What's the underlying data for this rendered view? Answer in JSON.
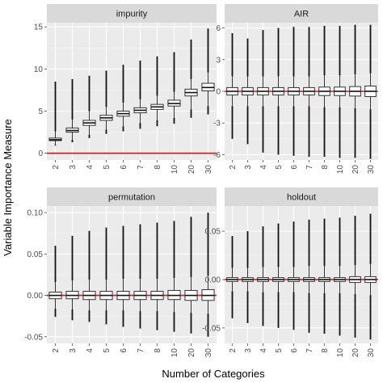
{
  "chart_data": {
    "type": "boxplot",
    "xlabel": "Number of Categories",
    "ylabel": "Variable Importance Measure",
    "categories": [
      "2",
      "3",
      "4",
      "5",
      "6",
      "7",
      "8",
      "10",
      "20",
      "30"
    ],
    "reference_line": {
      "y": 0,
      "color": "#d7191c"
    },
    "panels": [
      {
        "title": "impurity",
        "ylim": [
          -0.8,
          15.5
        ],
        "yticks": [
          0,
          5,
          10,
          15
        ],
        "ytick_labels": [
          "0",
          "5",
          "10",
          "15"
        ],
        "boxes": [
          {
            "q1": 1.5,
            "median": 1.6,
            "q3": 1.8,
            "lo": 1.0,
            "hi": 2.6,
            "omin": 0.9,
            "omax": 8.5
          },
          {
            "q1": 2.5,
            "median": 2.7,
            "q3": 3.0,
            "lo": 1.6,
            "hi": 4.0,
            "omin": 1.3,
            "omax": 8.8
          },
          {
            "q1": 3.3,
            "median": 3.6,
            "q3": 3.9,
            "lo": 2.2,
            "hi": 5.0,
            "omin": 1.8,
            "omax": 9.2
          },
          {
            "q1": 3.9,
            "median": 4.2,
            "q3": 4.5,
            "lo": 2.8,
            "hi": 5.5,
            "omin": 2.3,
            "omax": 9.8
          },
          {
            "q1": 4.4,
            "median": 4.7,
            "q3": 5.0,
            "lo": 3.2,
            "hi": 6.0,
            "omin": 2.6,
            "omax": 10.5
          },
          {
            "q1": 4.8,
            "median": 5.1,
            "q3": 5.4,
            "lo": 3.6,
            "hi": 6.4,
            "omin": 2.9,
            "omax": 11.0
          },
          {
            "q1": 5.2,
            "median": 5.5,
            "q3": 5.8,
            "lo": 3.9,
            "hi": 6.8,
            "omin": 3.2,
            "omax": 11.5
          },
          {
            "q1": 5.6,
            "median": 5.9,
            "q3": 6.3,
            "lo": 4.2,
            "hi": 7.3,
            "omin": 3.5,
            "omax": 12.0
          },
          {
            "q1": 6.8,
            "median": 7.2,
            "q3": 7.6,
            "lo": 5.2,
            "hi": 8.8,
            "omin": 4.2,
            "omax": 13.5
          },
          {
            "q1": 7.4,
            "median": 7.8,
            "q3": 8.3,
            "lo": 5.6,
            "hi": 9.6,
            "omin": 4.6,
            "omax": 14.8
          }
        ]
      },
      {
        "title": "AIR",
        "ylim": [
          -6.5,
          6.5
        ],
        "yticks": [
          -6,
          -3,
          0,
          3,
          6
        ],
        "ytick_labels": [
          "-6",
          "-3",
          "0",
          "3",
          "6"
        ],
        "boxes": [
          {
            "q1": -0.35,
            "median": 0,
            "q3": 0.35,
            "lo": -1.4,
            "hi": 1.4,
            "omin": -4.5,
            "omax": 5.5
          },
          {
            "q1": -0.35,
            "median": 0,
            "q3": 0.35,
            "lo": -1.4,
            "hi": 1.4,
            "omin": -5.0,
            "omax": 5.0
          },
          {
            "q1": -0.35,
            "median": 0,
            "q3": 0.35,
            "lo": -1.4,
            "hi": 1.4,
            "omin": -5.8,
            "omax": 5.8
          },
          {
            "q1": -0.35,
            "median": 0,
            "q3": 0.35,
            "lo": -1.4,
            "hi": 1.4,
            "omin": -6.0,
            "omax": 6.0
          },
          {
            "q1": -0.35,
            "median": 0,
            "q3": 0.35,
            "lo": -1.4,
            "hi": 1.4,
            "omin": -6.1,
            "omax": 6.1
          },
          {
            "q1": -0.35,
            "median": 0,
            "q3": 0.35,
            "lo": -1.4,
            "hi": 1.4,
            "omin": -6.2,
            "omax": 6.1
          },
          {
            "q1": -0.4,
            "median": 0,
            "q3": 0.4,
            "lo": -1.5,
            "hi": 1.5,
            "omin": -6.2,
            "omax": 6.2
          },
          {
            "q1": -0.4,
            "median": 0,
            "q3": 0.4,
            "lo": -1.5,
            "hi": 1.5,
            "omin": -6.3,
            "omax": 6.2
          },
          {
            "q1": -0.45,
            "median": 0,
            "q3": 0.45,
            "lo": -1.6,
            "hi": 1.6,
            "omin": -6.3,
            "omax": 6.3
          },
          {
            "q1": -0.5,
            "median": 0,
            "q3": 0.5,
            "lo": -1.7,
            "hi": 1.7,
            "omin": -6.4,
            "omax": 6.3
          }
        ]
      },
      {
        "title": "permutation",
        "ylim": [
          -0.058,
          0.108
        ],
        "yticks": [
          -0.05,
          0,
          0.05,
          0.1
        ],
        "ytick_labels": [
          "-0.05",
          "0.00",
          "0.05",
          "0.10"
        ],
        "boxes": [
          {
            "q1": -0.004,
            "median": 0,
            "q3": 0.004,
            "lo": -0.016,
            "hi": 0.016,
            "omin": -0.026,
            "omax": 0.06
          },
          {
            "q1": -0.004,
            "median": 0,
            "q3": 0.005,
            "lo": -0.017,
            "hi": 0.018,
            "omin": -0.03,
            "omax": 0.072
          },
          {
            "q1": -0.005,
            "median": 0,
            "q3": 0.005,
            "lo": -0.018,
            "hi": 0.019,
            "omin": -0.032,
            "omax": 0.078
          },
          {
            "q1": -0.005,
            "median": 0,
            "q3": 0.005,
            "lo": -0.018,
            "hi": 0.019,
            "omin": -0.035,
            "omax": 0.082
          },
          {
            "q1": -0.005,
            "median": 0,
            "q3": 0.005,
            "lo": -0.018,
            "hi": 0.02,
            "omin": -0.038,
            "omax": 0.084
          },
          {
            "q1": -0.005,
            "median": 0,
            "q3": 0.005,
            "lo": -0.019,
            "hi": 0.02,
            "omin": -0.04,
            "omax": 0.086
          },
          {
            "q1": -0.005,
            "median": 0,
            "q3": 0.005,
            "lo": -0.019,
            "hi": 0.02,
            "omin": -0.042,
            "omax": 0.088
          },
          {
            "q1": -0.005,
            "median": 0,
            "q3": 0.006,
            "lo": -0.02,
            "hi": 0.021,
            "omin": -0.044,
            "omax": 0.09
          },
          {
            "q1": -0.006,
            "median": 0,
            "q3": 0.006,
            "lo": -0.021,
            "hi": 0.022,
            "omin": -0.046,
            "omax": 0.095
          },
          {
            "q1": -0.006,
            "median": 0,
            "q3": 0.007,
            "lo": -0.022,
            "hi": 0.024,
            "omin": -0.05,
            "omax": 0.1
          }
        ]
      },
      {
        "title": "holdout",
        "ylim": [
          -0.066,
          0.076
        ],
        "yticks": [
          -0.05,
          0,
          0.05
        ],
        "ytick_labels": [
          "-0.05",
          "0.00",
          "0.05"
        ],
        "boxes": [
          {
            "q1": -0.002,
            "median": 0,
            "q3": 0.002,
            "lo": -0.012,
            "hi": 0.012,
            "omin": -0.04,
            "omax": 0.045
          },
          {
            "q1": -0.002,
            "median": 0,
            "q3": 0.002,
            "lo": -0.012,
            "hi": 0.012,
            "omin": -0.045,
            "omax": 0.05
          },
          {
            "q1": -0.002,
            "median": 0,
            "q3": 0.002,
            "lo": -0.013,
            "hi": 0.013,
            "omin": -0.048,
            "omax": 0.055
          },
          {
            "q1": -0.002,
            "median": 0,
            "q3": 0.002,
            "lo": -0.013,
            "hi": 0.013,
            "omin": -0.05,
            "omax": 0.058
          },
          {
            "q1": -0.002,
            "median": 0,
            "q3": 0.002,
            "lo": -0.013,
            "hi": 0.013,
            "omin": -0.052,
            "omax": 0.06
          },
          {
            "q1": -0.002,
            "median": 0,
            "q3": 0.002,
            "lo": -0.014,
            "hi": 0.014,
            "omin": -0.055,
            "omax": 0.062
          },
          {
            "q1": -0.002,
            "median": 0,
            "q3": 0.002,
            "lo": -0.014,
            "hi": 0.014,
            "omin": -0.056,
            "omax": 0.063
          },
          {
            "q1": -0.002,
            "median": 0,
            "q3": 0.002,
            "lo": -0.014,
            "hi": 0.014,
            "omin": -0.058,
            "omax": 0.064
          },
          {
            "q1": -0.003,
            "median": 0,
            "q3": 0.003,
            "lo": -0.015,
            "hi": 0.015,
            "omin": -0.06,
            "omax": 0.066
          },
          {
            "q1": -0.003,
            "median": 0,
            "q3": 0.003,
            "lo": -0.016,
            "hi": 0.016,
            "omin": -0.062,
            "omax": 0.068
          }
        ]
      }
    ]
  }
}
